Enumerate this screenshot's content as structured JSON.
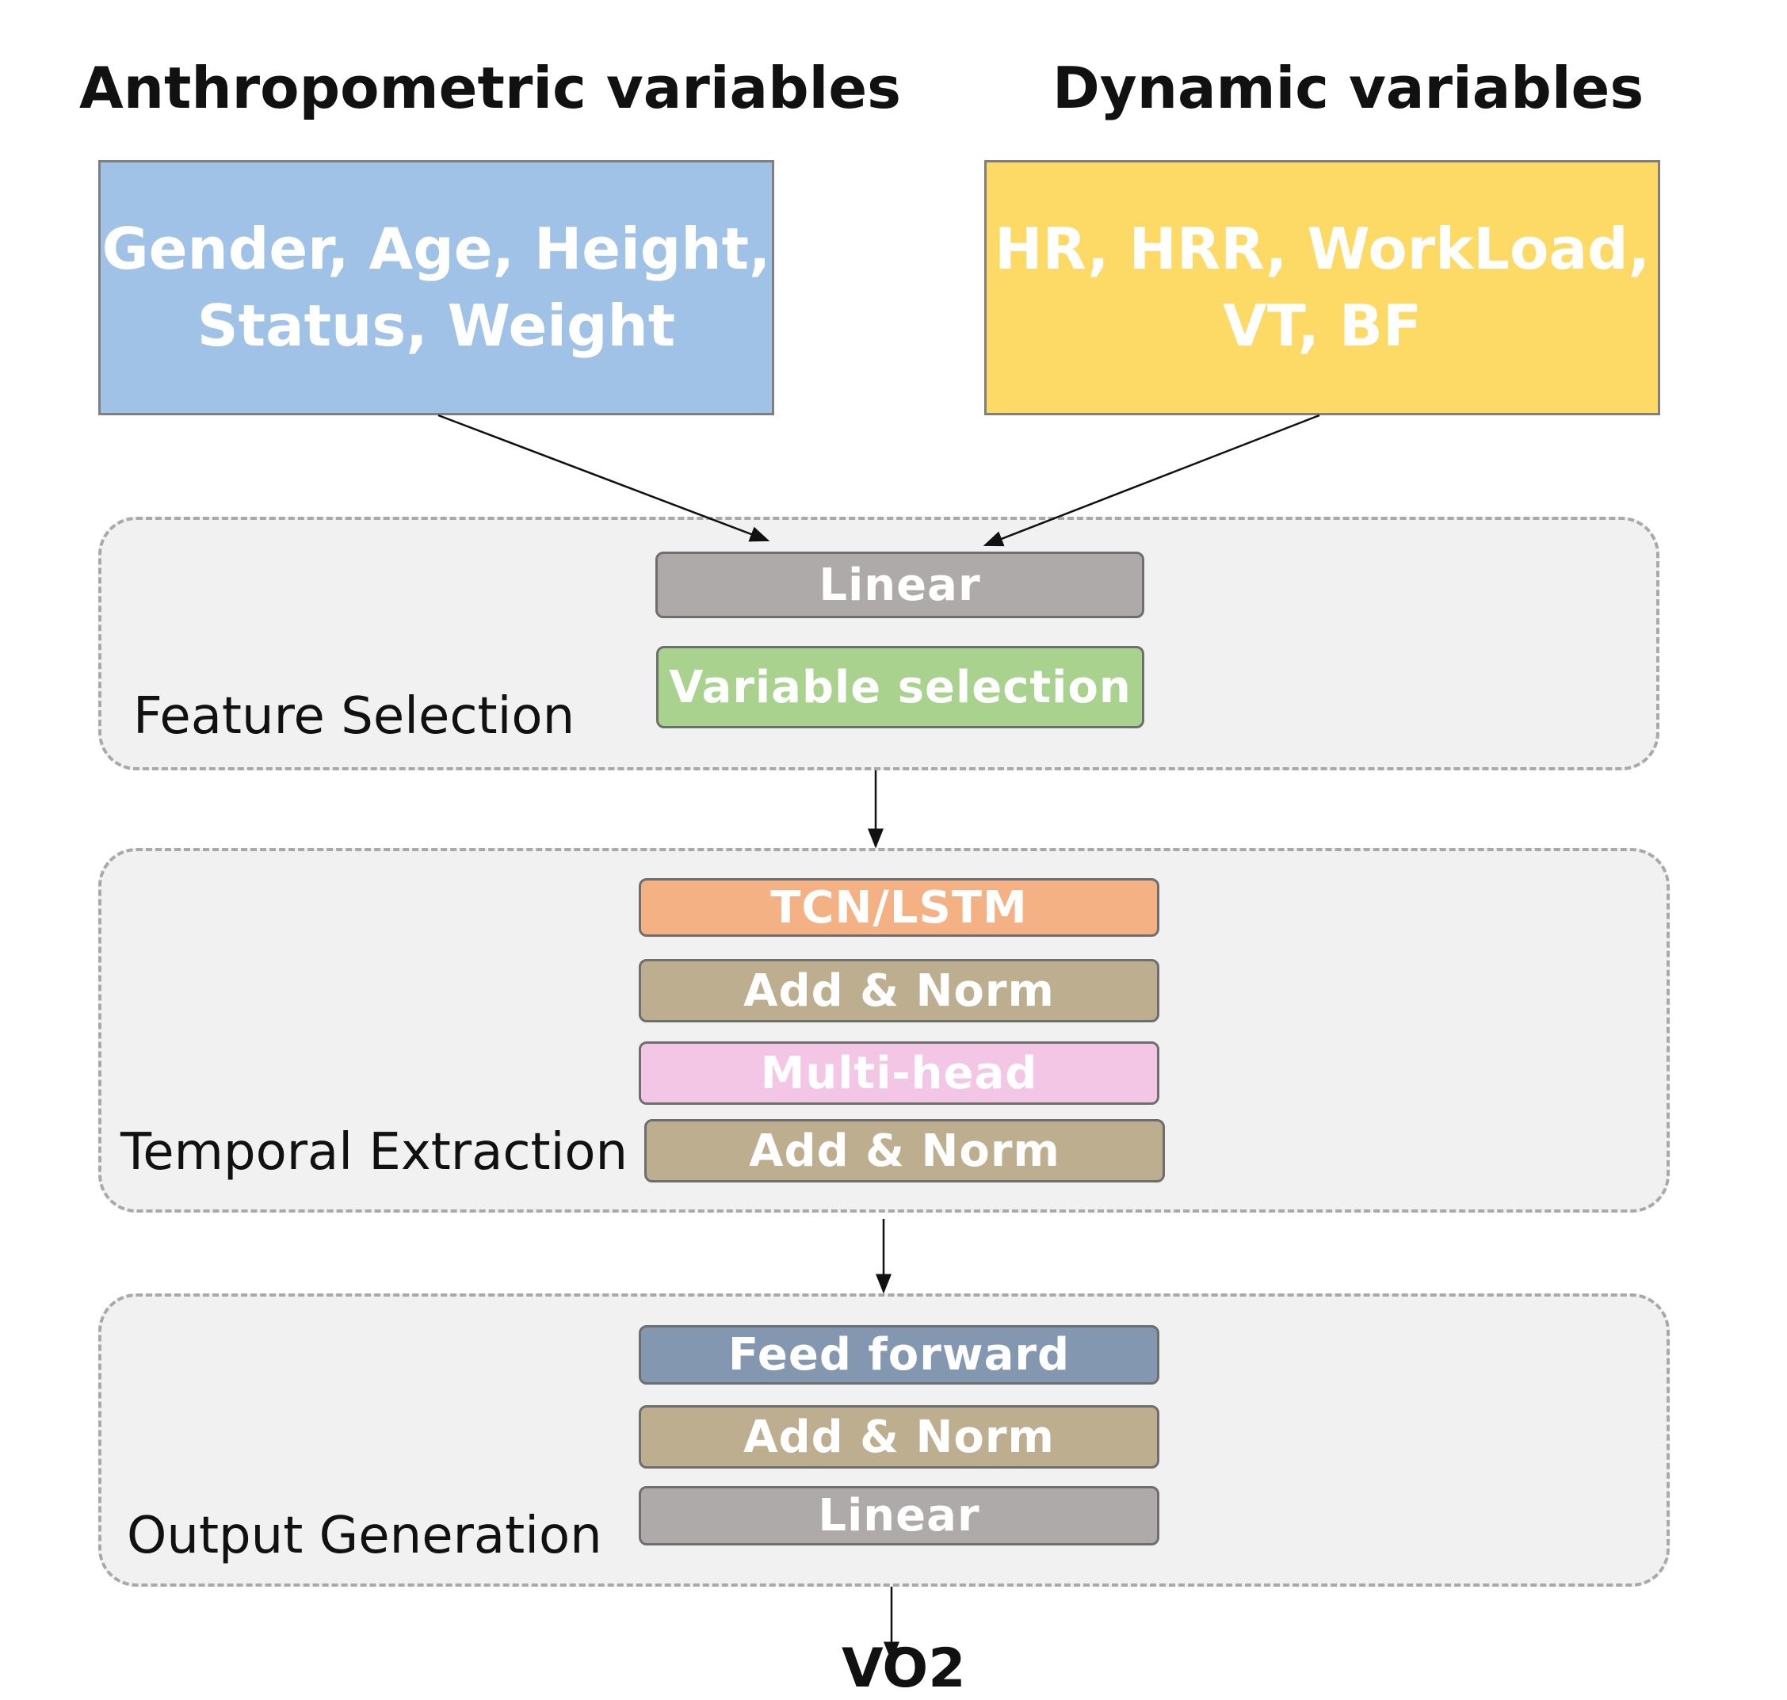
{
  "headings": {
    "anthropometric": "Anthropometric variables",
    "dynamic": "Dynamic variables"
  },
  "inputs": {
    "anthropometric": {
      "line1": "Gender, Age, Height,",
      "line2": "Status, Weight",
      "color": "#9fc2e6"
    },
    "dynamic": {
      "line1": "HR, HRR, WorkLoad,",
      "line2": "VT, BF",
      "color": "#fdd966"
    }
  },
  "groups": {
    "feature_selection": {
      "label": "Feature Selection",
      "blocks": [
        {
          "label": "Linear",
          "color": "#aeaaa9"
        },
        {
          "label": "Variable selection",
          "color": "#a8d28e"
        }
      ]
    },
    "temporal_extraction": {
      "label": "Temporal Extraction",
      "blocks": [
        {
          "label": "TCN/LSTM",
          "color": "#f4b183"
        },
        {
          "label": "Add & Norm",
          "color": "#bcae8f"
        },
        {
          "label": "Multi-head",
          "color": "#f2c6e4"
        },
        {
          "label": "Add & Norm",
          "color": "#bcae8f"
        }
      ]
    },
    "output_generation": {
      "label": "Output Generation",
      "blocks": [
        {
          "label": "Feed forward",
          "color": "#8497b0"
        },
        {
          "label": "Add & Norm",
          "color": "#bcae8f"
        },
        {
          "label": "Linear",
          "color": "#aeaaa9"
        }
      ]
    }
  },
  "output": "VO2"
}
